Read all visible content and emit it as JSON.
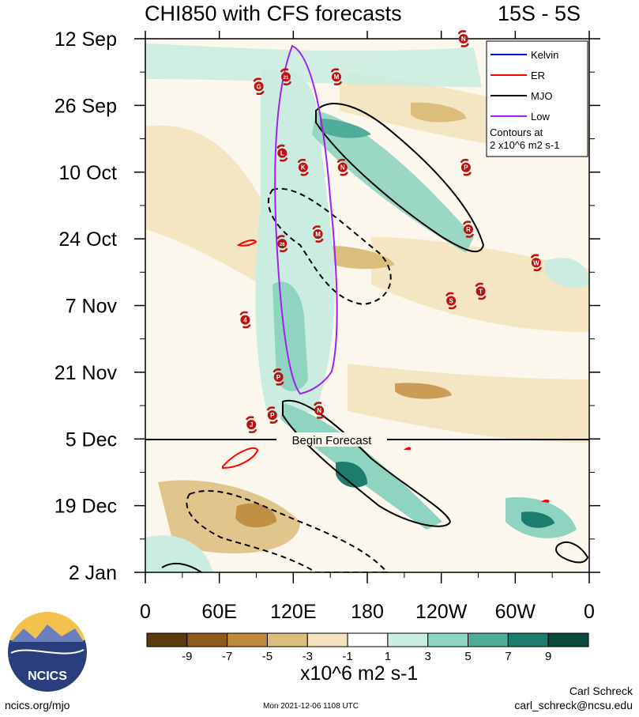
{
  "chart_data": {
    "type": "heatmap",
    "title": "CHI850 with CFS forecasts",
    "region": "15S - 5S",
    "xlabel": "",
    "ylabel": "",
    "x_ticks": [
      "0",
      "60E",
      "120E",
      "180",
      "120W",
      "60W",
      "0"
    ],
    "y_ticks": [
      "12 Sep",
      "26 Sep",
      "10 Oct",
      "24 Oct",
      "7 Nov",
      "21 Nov",
      "5 Dec",
      "19 Dec",
      "2 Jan"
    ],
    "colorbar_labels": [
      "-9",
      "-7",
      "-5",
      "-3",
      "-1",
      "1",
      "3",
      "5",
      "7",
      "9"
    ],
    "colorbar_colors": [
      "#5c3a0c",
      "#8f5a1e",
      "#bf8a3c",
      "#dbbd7c",
      "#f3e3bf",
      "#ffffff",
      "#cbece0",
      "#8fd3c1",
      "#4fae9a",
      "#1d7d6c",
      "#0b4a3d"
    ],
    "units": "x10^6 m2 s-1",
    "legend": {
      "position": "top-right",
      "entries": [
        {
          "label": "Kelvin",
          "color": "#0000ff"
        },
        {
          "label": "ER",
          "color": "#ff0000"
        },
        {
          "label": "MJO",
          "color": "#000000"
        },
        {
          "label": "Low",
          "color": "#a020f0"
        }
      ],
      "note_line1": "Contours at",
      "note_line2": "2 x10^6 m2 s-1"
    },
    "forecast_label": "Begin Forecast",
    "forecast_start": "5 Dec",
    "storms": [
      {
        "label": "M",
        "lon": 155,
        "date": "20 Sep"
      },
      {
        "label": "21",
        "lon": 114,
        "date": "20 Sep"
      },
      {
        "label": "G",
        "lon": 92,
        "date": "22 Sep"
      },
      {
        "label": "L",
        "lon": 111,
        "date": "6 Oct"
      },
      {
        "label": "K",
        "lon": 128,
        "date": "9 Oct"
      },
      {
        "label": "N",
        "lon": 160,
        "date": "9 Oct"
      },
      {
        "label": "P",
        "lon": 260,
        "date": "9 Oct"
      },
      {
        "label": "R",
        "lon": 262,
        "date": "22 Oct"
      },
      {
        "label": "M",
        "lon": 140,
        "date": "23 Oct"
      },
      {
        "label": "26",
        "lon": 111,
        "date": "25 Oct"
      },
      {
        "label": "W",
        "lon": 317,
        "date": "29 Oct"
      },
      {
        "label": "T",
        "lon": 272,
        "date": "4 Nov"
      },
      {
        "label": "S",
        "lon": 248,
        "date": "6 Nov"
      },
      {
        "label": "4",
        "lon": 81,
        "date": "10 Nov"
      },
      {
        "label": "P",
        "lon": 108,
        "date": "22 Nov"
      },
      {
        "label": "N",
        "lon": 141,
        "date": "29 Nov"
      },
      {
        "label": "P",
        "lon": 103,
        "date": "30 Nov"
      },
      {
        "label": "J",
        "lon": 86,
        "date": "2 Dec"
      },
      {
        "label": "N",
        "lon": 258,
        "date": "12 Sep"
      }
    ]
  },
  "footer": {
    "logo_text": "NCICS",
    "url": "ncics.org/mjo",
    "date": "Mon 2021-12-06 1108 UTC",
    "author": "Carl Schreck",
    "email": "carl_schreck@ncsu.edu"
  }
}
